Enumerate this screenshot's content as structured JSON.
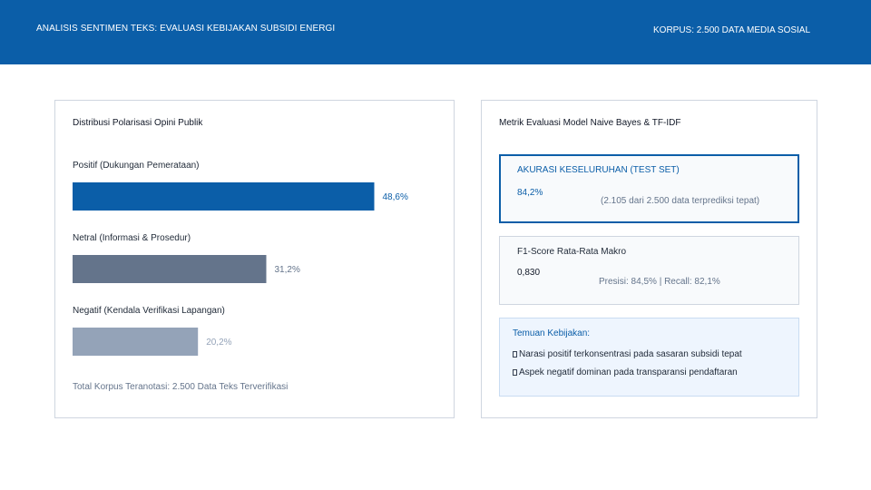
{
  "header": {
    "title": "ANALISIS SENTIMEN TEKS: EVALUASI KEBIJAKAN SUBSIDI ENERGI",
    "meta": "KORPUS: 2.500 DATA MEDIA SOSIAL",
    "background_color": "#0b5ea8"
  },
  "left_panel": {
    "title": "Distribusi Polarisasi Opini Publik",
    "total_note": "Total Korpus Teranotasi: 2.500 Data Teks Terverifikasi"
  },
  "chart_data": {
    "type": "bar",
    "orientation": "horizontal",
    "title": "Distribusi Polarisasi Opini Publik",
    "categories": [
      "Positif (Dukungan Pemerataan)",
      "Netral (Informasi & Prosedur)",
      "Negatif (Kendala Verifikasi Lapangan)"
    ],
    "values": [
      48.6,
      31.2,
      20.2
    ],
    "value_labels": [
      "48,6%",
      "31,2%",
      "20,2%"
    ],
    "colors": [
      "#0b5ea8",
      "#64748b",
      "#94a3b8"
    ],
    "label_colors": [
      "#0b5ea8",
      "#64748b",
      "#94a3b8"
    ],
    "xlim": [
      0,
      57
    ],
    "grid": false,
    "legend": "none"
  },
  "right_panel": {
    "title": "Metrik Evaluasi Model Naive Bayes & TF-IDF",
    "accuracy": {
      "label": "AKURASI KESELURUHAN (TEST SET)",
      "value": "84,2%",
      "detail": "(2.105 dari 2.500 data terprediksi tepat)"
    },
    "f1": {
      "label": "F1-Score Rata-Rata Makro",
      "value": "0,830",
      "detail": "Presisi: 84,5% | Recall: 82,1%"
    },
    "findings": {
      "title": "Temuan Kebijakan:",
      "items": [
        "Narasi positif terkonsentrasi pada sasaran subsidi tepat",
        "Aspek negatif dominan pada transparansi pendaftaran"
      ]
    }
  }
}
